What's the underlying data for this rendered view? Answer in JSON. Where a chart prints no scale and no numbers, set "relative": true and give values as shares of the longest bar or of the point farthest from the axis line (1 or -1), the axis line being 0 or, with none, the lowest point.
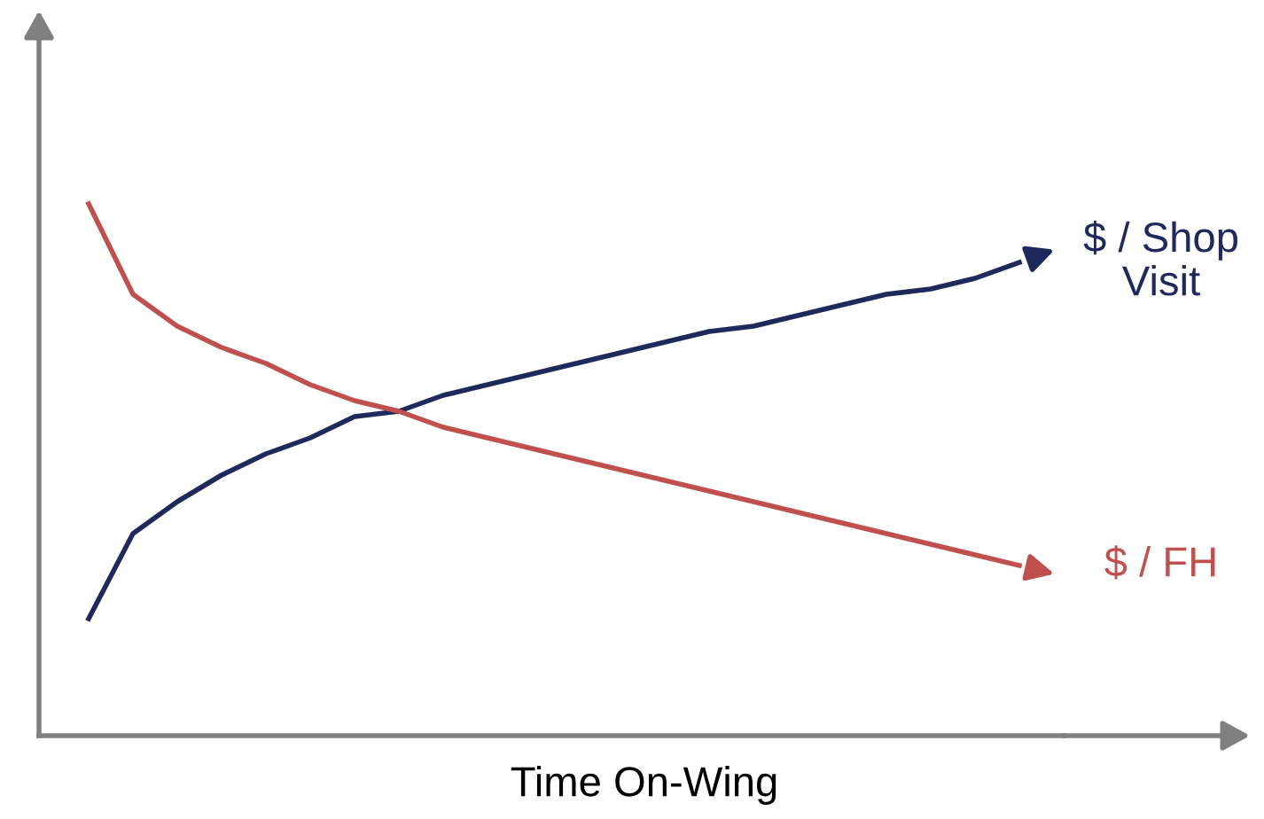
{
  "chart_data": {
    "type": "line",
    "relative": true,
    "xlabel": "Time On-Wing",
    "categories": [
      null,
      null,
      null,
      null,
      null,
      null,
      null,
      null,
      null,
      null,
      null,
      null,
      null,
      null,
      null,
      null,
      null,
      null,
      null,
      null,
      null,
      null
    ],
    "series": [
      {
        "name": "$ / Shop\nVisit",
        "color": "#1f2a5c",
        "values": [
          0.22,
          0.38,
          0.44,
          0.49,
          0.53,
          0.56,
          0.6,
          0.61,
          0.64,
          0.66,
          0.68,
          0.7,
          0.72,
          0.74,
          0.76,
          0.77,
          0.79,
          0.81,
          0.83,
          0.84,
          0.86,
          0.89
        ]
      },
      {
        "name": "$ / FH",
        "color": "#c0504d",
        "values": [
          1.0,
          0.83,
          0.77,
          0.73,
          0.7,
          0.66,
          0.63,
          0.61,
          0.58,
          0.56,
          0.54,
          0.52,
          0.5,
          0.48,
          0.46,
          0.44,
          0.42,
          0.4,
          0.38,
          0.36,
          0.34,
          0.32
        ]
      }
    ],
    "legend": "right",
    "line_style": "solid",
    "marker": "none"
  }
}
